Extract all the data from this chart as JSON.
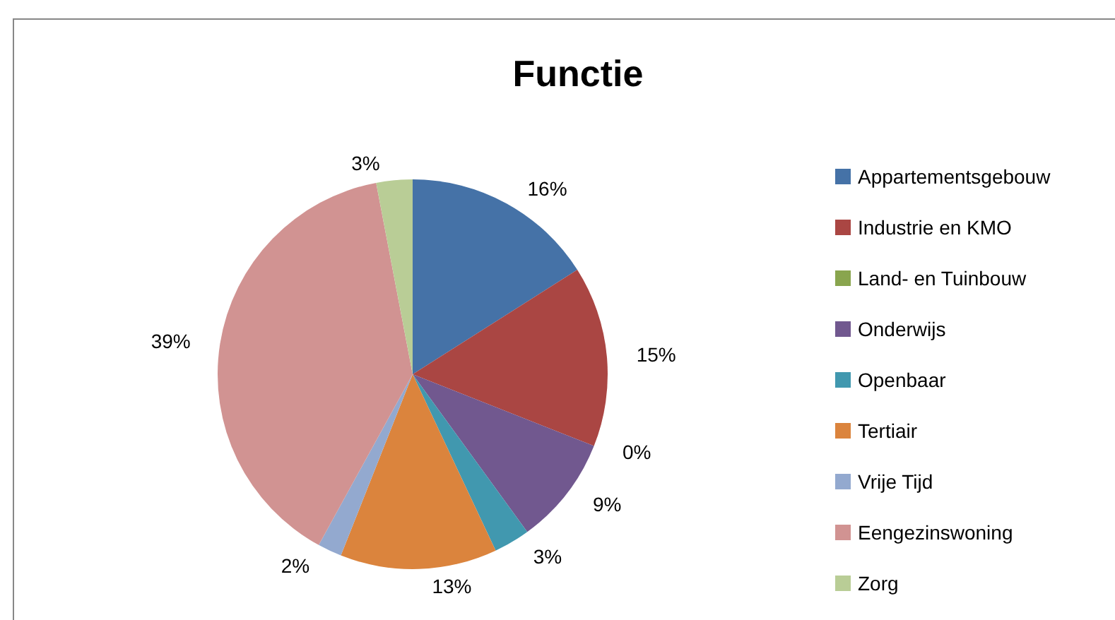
{
  "chart_data": {
    "type": "pie",
    "title": "Functie",
    "categories": [
      "Appartementsgebouw",
      "Industrie en KMO",
      "Land- en Tuinbouw",
      "Onderwijs",
      "Openbaar",
      "Tertiair",
      "Vrije Tijd",
      "Eengezinswoning",
      "Zorg"
    ],
    "values": [
      16,
      15,
      0,
      9,
      3,
      13,
      2,
      39,
      3
    ],
    "value_labels": [
      "16%",
      "15%",
      "0%",
      "9%",
      "3%",
      "13%",
      "2%",
      "39%",
      "3%"
    ],
    "colors": [
      "#4572a7",
      "#aa4643",
      "#89a54e",
      "#71588f",
      "#4198af",
      "#db843d",
      "#93a9cf",
      "#d19392",
      "#b9cd96"
    ],
    "legend": "right"
  }
}
